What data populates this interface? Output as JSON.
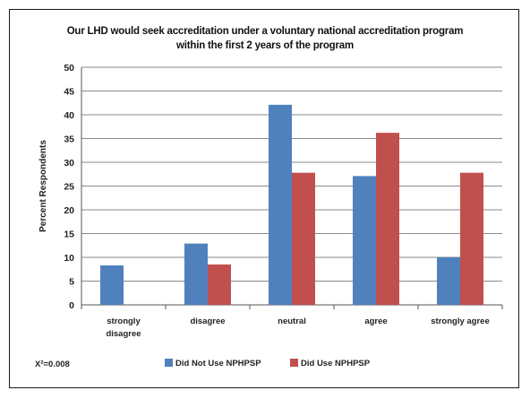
{
  "chart_data": {
    "type": "bar",
    "title_lines": [
      "Our LHD would seek accreditation under a voluntary national accreditation program",
      "within the first 2 years of the program"
    ],
    "xlabel": "",
    "ylabel": "Percent Respondents",
    "ylim": [
      0,
      50
    ],
    "yticks": [
      0,
      5,
      10,
      15,
      20,
      25,
      30,
      35,
      40,
      45,
      50
    ],
    "grid": true,
    "legend_position": "bottom",
    "categories": [
      [
        "strongly",
        "disagree"
      ],
      [
        "disagree"
      ],
      [
        "neutral"
      ],
      [
        "agree"
      ],
      [
        "strongly agree"
      ]
    ],
    "series": [
      {
        "name": "Did Not Use NPHPSP",
        "color": "#4f81bd",
        "values": [
          8.3,
          12.9,
          42.1,
          27.1,
          10.0
        ]
      },
      {
        "name": "Did Use NPHPSP",
        "color": "#c0504d",
        "values": [
          0,
          8.5,
          27.8,
          36.2,
          27.8
        ]
      }
    ],
    "annotation": "X²=0.008"
  }
}
